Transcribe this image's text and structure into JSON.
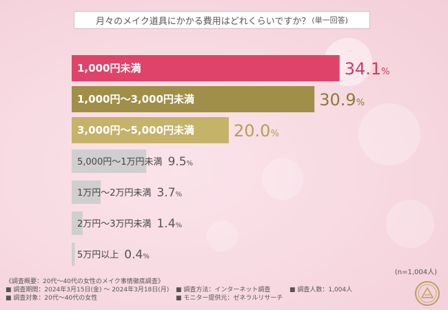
{
  "title": {
    "main": "月々のメイク道具にかかる費用はどれくらいですか？",
    "sub": "(単一回答)"
  },
  "sample_size": "(n=1,004人)",
  "notes": {
    "col1": [
      "《調査概要：20代〜40代の女性のメイク事情徹底調査》",
      "■ 調査期間：2024年3月15日(金) 〜 2024年3月18日(月)",
      "■ 調査対象：20代〜40代の女性"
    ],
    "col2": [
      "■ 調査方法：インターネット調査",
      "■ モニター提供元：ゼネラルリサーチ"
    ],
    "col3": [
      "■ 調査人数：1,004人"
    ]
  },
  "colors": {
    "bar_1": "#e0436a",
    "bar_2": "#a08f48",
    "bar_3": "#c6b36a",
    "bar_other": "#cfcfcf",
    "value_1": "#d6375f",
    "value_2": "#8a7a3a",
    "value_3": "#b39f55",
    "value_other": "#555555"
  },
  "chart_data": {
    "type": "bar",
    "orientation": "horizontal",
    "categories": [
      "1,000円未満",
      "1,000円〜3,000円未満",
      "3,000円〜5,000円未満",
      "5,000円〜1万円未満",
      "1万円〜2万円未満",
      "2万円〜3万円未満",
      "5万円以上"
    ],
    "values": [
      34.1,
      30.9,
      20.0,
      9.5,
      3.7,
      1.4,
      0.4
    ],
    "value_labels": [
      {
        "num": "34.1",
        "unit": "%"
      },
      {
        "num": "30.9",
        "unit": "%"
      },
      {
        "num": "20.0",
        "unit": "%"
      },
      {
        "num": "9.5",
        "unit": "%"
      },
      {
        "num": "3.7",
        "unit": "%"
      },
      {
        "num": "1.4",
        "unit": "%"
      },
      {
        "num": "0.4",
        "unit": "%"
      }
    ],
    "xlim": [
      0,
      40
    ],
    "grid": false
  }
}
